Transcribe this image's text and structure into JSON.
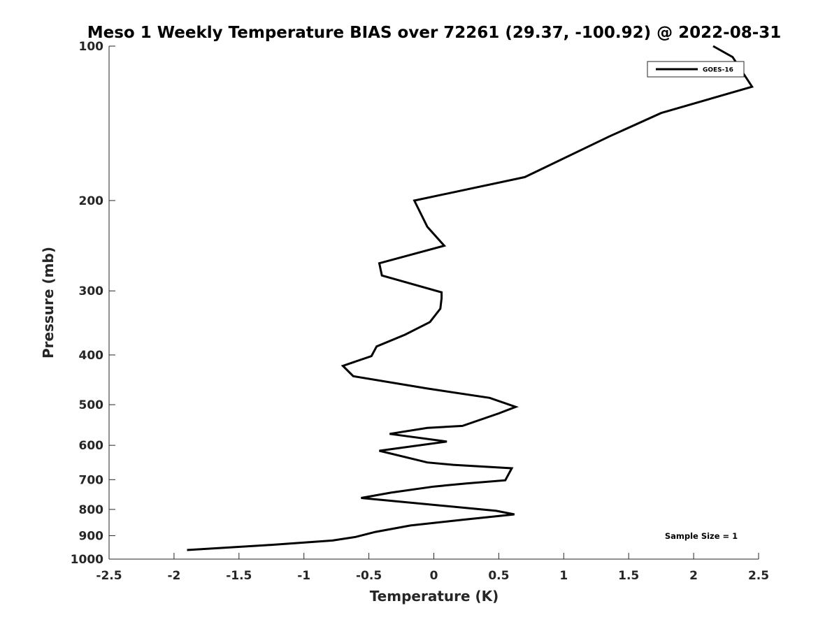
{
  "chart_data": {
    "type": "line",
    "title": "Meso 1 Weekly Temperature BIAS over 72261 (29.37, -100.92) @ 2022-08-31",
    "xlabel": "Temperature (K)",
    "ylabel": "Pressure (mb)",
    "xlim": [
      -2.5,
      2.5
    ],
    "ylim": [
      100,
      1000
    ],
    "y_scale": "log",
    "y_reversed": true,
    "x_ticks": [
      "-2.5",
      "-2",
      "-1.5",
      "-1",
      "-0.5",
      "0",
      "0.5",
      "1",
      "1.5",
      "2",
      "2.5"
    ],
    "y_ticks": [
      "100",
      "200",
      "300",
      "400",
      "500",
      "600",
      "700",
      "800",
      "900",
      "1000"
    ],
    "grid": false,
    "legend_position": "top-right",
    "series": [
      {
        "name": "GOES-16",
        "color": "#000000",
        "points": [
          {
            "x": 2.15,
            "p": 100
          },
          {
            "x": 2.3,
            "p": 105
          },
          {
            "x": 2.45,
            "p": 120
          },
          {
            "x": 1.75,
            "p": 135
          },
          {
            "x": 1.35,
            "p": 150
          },
          {
            "x": 0.7,
            "p": 180
          },
          {
            "x": -0.15,
            "p": 200
          },
          {
            "x": -0.05,
            "p": 225
          },
          {
            "x": 0.08,
            "p": 245
          },
          {
            "x": -0.42,
            "p": 265
          },
          {
            "x": -0.4,
            "p": 280
          },
          {
            "x": 0.06,
            "p": 302
          },
          {
            "x": 0.06,
            "p": 310
          },
          {
            "x": 0.05,
            "p": 325
          },
          {
            "x": -0.03,
            "p": 345
          },
          {
            "x": -0.22,
            "p": 365
          },
          {
            "x": -0.44,
            "p": 385
          },
          {
            "x": -0.48,
            "p": 402
          },
          {
            "x": -0.7,
            "p": 420
          },
          {
            "x": -0.62,
            "p": 440
          },
          {
            "x": -0.05,
            "p": 465
          },
          {
            "x": 0.43,
            "p": 485
          },
          {
            "x": 0.63,
            "p": 505
          },
          {
            "x": 0.5,
            "p": 520
          },
          {
            "x": 0.22,
            "p": 550
          },
          {
            "x": -0.05,
            "p": 555
          },
          {
            "x": -0.34,
            "p": 570
          },
          {
            "x": 0.1,
            "p": 590
          },
          {
            "x": -0.42,
            "p": 615
          },
          {
            "x": -0.05,
            "p": 648
          },
          {
            "x": 0.15,
            "p": 655
          },
          {
            "x": 0.6,
            "p": 665
          },
          {
            "x": 0.55,
            "p": 702
          },
          {
            "x": 0.25,
            "p": 712
          },
          {
            "x": 0.0,
            "p": 722
          },
          {
            "x": -0.33,
            "p": 742
          },
          {
            "x": -0.56,
            "p": 760
          },
          {
            "x": 0.48,
            "p": 805
          },
          {
            "x": 0.62,
            "p": 818
          },
          {
            "x": 0.22,
            "p": 838
          },
          {
            "x": -0.18,
            "p": 860
          },
          {
            "x": -0.45,
            "p": 885
          },
          {
            "x": -0.6,
            "p": 905
          },
          {
            "x": -0.78,
            "p": 920
          },
          {
            "x": -1.25,
            "p": 938
          },
          {
            "x": -1.9,
            "p": 960
          }
        ]
      }
    ],
    "annotations": [
      "Sample Size = 1"
    ]
  }
}
